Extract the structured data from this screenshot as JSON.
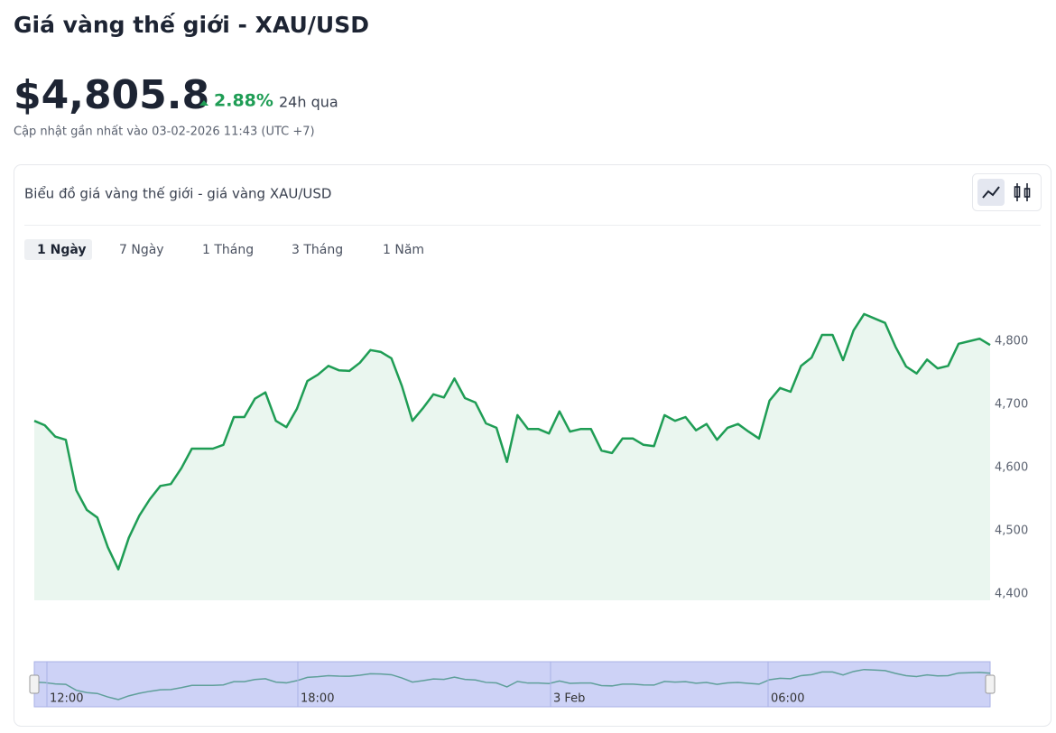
{
  "header": {
    "title": "Giá vàng thế giới - XAU/USD",
    "price": "$4,805.8",
    "change": "2.88%",
    "period": "24h qua",
    "updated": "Cập nhật gần nhất vào 03-02-2026 11:43 (UTC +7)"
  },
  "card": {
    "title": "Biểu đồ giá vàng thế giới - giá vàng XAU/USD",
    "tabs": [
      "1 Ngày",
      "7 Ngày",
      "1 Tháng",
      "3 Tháng",
      "1 Năm"
    ],
    "active_tab": 0
  },
  "chart_data": {
    "type": "line",
    "color": "#1f9d55",
    "fill": "#eaf6ef",
    "values": [
      4674,
      4667,
      4649,
      4644,
      4564,
      4533,
      4521,
      4474,
      4439,
      4489,
      4524,
      4550,
      4571,
      4574,
      4599,
      4630,
      4630,
      4630,
      4636,
      4680,
      4680,
      4709,
      4719,
      4674,
      4664,
      4693,
      4737,
      4747,
      4761,
      4754,
      4753,
      4766,
      4786,
      4783,
      4773,
      4729,
      4674,
      4694,
      4716,
      4711,
      4741,
      4710,
      4703,
      4670,
      4663,
      4609,
      4683,
      4661,
      4661,
      4654,
      4689,
      4657,
      4661,
      4661,
      4627,
      4623,
      4646,
      4646,
      4636,
      4634,
      4683,
      4674,
      4680,
      4659,
      4669,
      4644,
      4663,
      4669,
      4657,
      4646,
      4706,
      4726,
      4720,
      4761,
      4774,
      4810,
      4810,
      4770,
      4817,
      4843,
      4836,
      4829,
      4791,
      4760,
      4749,
      4771,
      4757,
      4761,
      4796,
      4800,
      4804,
      4794
    ],
    "ylim": [
      4390,
      4900
    ],
    "yticks": [
      {
        "value": 4400,
        "label": "4,400"
      },
      {
        "value": 4500,
        "label": "4,500"
      },
      {
        "value": 4600,
        "label": "4,600"
      },
      {
        "value": 4700,
        "label": "4,700"
      },
      {
        "value": 4800,
        "label": "4,800"
      }
    ],
    "navigator_labels": [
      "12:00",
      "18:00",
      "3 Feb",
      "06:00"
    ]
  }
}
